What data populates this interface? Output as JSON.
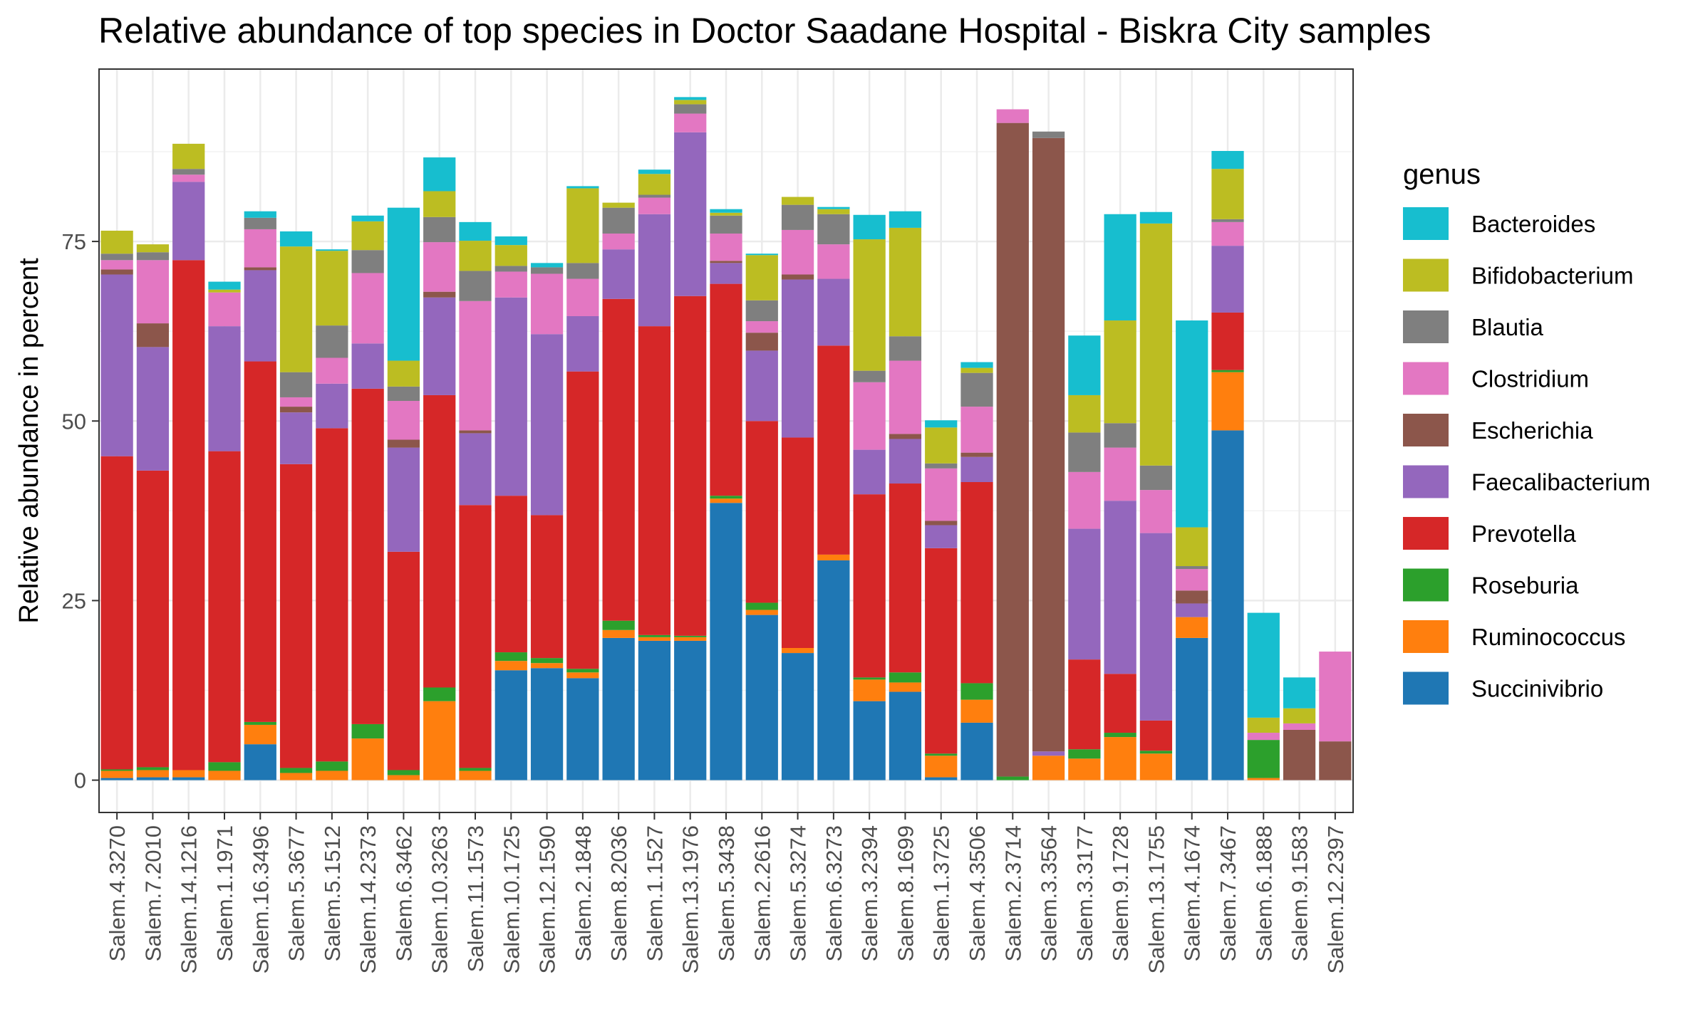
{
  "chart_data": {
    "type": "bar",
    "stacked": true,
    "title": "Relative abundance of top species in Doctor Saadane Hospital - Biskra City  samples",
    "xlabel": "",
    "ylabel": "Relative abundance in percent",
    "ylim": [
      -4.5,
      99
    ],
    "y_ticks": [
      0,
      25,
      50,
      75
    ],
    "grid": true,
    "legend": {
      "title": "genus",
      "position": "right"
    },
    "categories": [
      "Salem.4.3270",
      "Salem.7.2010",
      "Salem.14.1216",
      "Salem.1.1971",
      "Salem.16.3496",
      "Salem.5.3677",
      "Salem.5.1512",
      "Salem.14.2373",
      "Salem.6.3462",
      "Salem.10.3263",
      "Salem.11.1573",
      "Salem.10.1725",
      "Salem.12.1590",
      "Salem.2.1848",
      "Salem.8.2036",
      "Salem.1.1527",
      "Salem.13.1976",
      "Salem.5.3438",
      "Salem.2.2616",
      "Salem.5.3274",
      "Salem.6.3273",
      "Salem.3.2394",
      "Salem.8.1699",
      "Salem.1.3725",
      "Salem.4.3506",
      "Salem.2.3714",
      "Salem.3.3564",
      "Salem.3.3177",
      "Salem.9.1728",
      "Salem.13.1755",
      "Salem.4.1674",
      "Salem.7.3467",
      "Salem.6.1888",
      "Salem.9.1583",
      "Salem.12.2397"
    ],
    "series": [
      {
        "name": "Succinivibrio",
        "color": "#1f77b4",
        "values": [
          0.3,
          0.4,
          0.4,
          0,
          5,
          0,
          0,
          0,
          0,
          0,
          0,
          15.3,
          15.6,
          14.2,
          19.8,
          19.4,
          19.4,
          38.6,
          23,
          17.7,
          30.6,
          11,
          12.3,
          0.4,
          8,
          0,
          0,
          0,
          0,
          0,
          19.8,
          48.7,
          0,
          0,
          0
        ]
      },
      {
        "name": "Ruminococcus",
        "color": "#ff7f0e",
        "values": [
          1,
          1,
          1,
          1.3,
          2.7,
          1,
          1.3,
          5.8,
          0.7,
          11,
          1.3,
          1.3,
          0.7,
          0.8,
          1.1,
          0.5,
          0.5,
          0.6,
          0.7,
          0.7,
          0.8,
          3,
          1.3,
          3,
          3.2,
          0,
          3.4,
          3,
          6,
          3.7,
          2.9,
          8.1,
          0.3,
          0,
          0
        ]
      },
      {
        "name": "Roseburia",
        "color": "#2ca02c",
        "values": [
          0.2,
          0.4,
          0,
          1.2,
          0.4,
          0.7,
          1.3,
          2,
          0.7,
          1.9,
          0.4,
          1.2,
          0.7,
          0.5,
          1.3,
          0.3,
          0.2,
          0.4,
          1,
          0,
          0,
          0.3,
          1.4,
          0.3,
          2.3,
          0.5,
          0,
          1.3,
          0.6,
          0.4,
          0,
          0.3,
          5.3,
          0,
          0
        ]
      },
      {
        "name": "Prevotella",
        "color": "#d62728",
        "values": [
          43.6,
          41.3,
          71,
          43.3,
          50.2,
          42.3,
          46.4,
          46.7,
          30.4,
          40.7,
          36.6,
          21.8,
          19.9,
          41.4,
          44.8,
          43,
          47.3,
          29.5,
          25.3,
          29.3,
          29.1,
          25.5,
          26.3,
          28.6,
          28,
          0,
          0,
          12.5,
          8.2,
          4.2,
          0,
          8,
          0,
          0,
          0
        ]
      },
      {
        "name": "Faecalibacterium",
        "color": "#9467bd",
        "values": [
          25.3,
          17.2,
          10.9,
          17.4,
          12.7,
          7.2,
          6.2,
          6.3,
          14.5,
          13.6,
          10,
          27.6,
          25.2,
          7.7,
          6.9,
          15.6,
          22.8,
          2.9,
          9.8,
          22,
          9.3,
          6.2,
          6.2,
          3.2,
          3.5,
          0,
          0.6,
          18.2,
          24.1,
          26.1,
          1.9,
          9.3,
          0,
          0,
          0
        ]
      },
      {
        "name": "Escherichia",
        "color": "#8c564b",
        "values": [
          0.7,
          3.3,
          0,
          0,
          0.4,
          0.8,
          0,
          0,
          1.1,
          0.8,
          0.4,
          0,
          0,
          0,
          0,
          0,
          0,
          0.3,
          2.5,
          0.7,
          0,
          0,
          0.7,
          0.6,
          0.6,
          91,
          85.4,
          0,
          0,
          0,
          1.8,
          0,
          0,
          7,
          5.4
        ]
      },
      {
        "name": "Clostridium",
        "color": "#e377c2",
        "values": [
          1.3,
          8.8,
          1,
          4.7,
          5.3,
          1.3,
          3.6,
          9.8,
          5.4,
          6.9,
          18,
          3.6,
          8.4,
          5.2,
          2.2,
          2.3,
          2.6,
          3.8,
          1.6,
          6.2,
          4.8,
          9.4,
          10.2,
          7.3,
          6.4,
          1.9,
          0,
          7.9,
          7.4,
          6,
          3,
          3.3,
          1,
          0.9,
          12.5
        ]
      },
      {
        "name": "Blautia",
        "color": "#7f7f7f",
        "values": [
          0.9,
          1.1,
          0.8,
          0,
          1.6,
          3.5,
          4.5,
          3.2,
          2,
          3.5,
          4.2,
          0.8,
          0.9,
          2.2,
          3.6,
          0.4,
          1.3,
          2.5,
          2.9,
          3.5,
          4.2,
          1.6,
          3.4,
          0.7,
          4.7,
          0,
          0.9,
          5.5,
          3.4,
          3.4,
          0.4,
          0.4,
          0,
          0,
          0
        ]
      },
      {
        "name": "Bifidobacterium",
        "color": "#bcbd22",
        "values": [
          3.2,
          1.1,
          3.5,
          0.4,
          0,
          17.5,
          10.4,
          4,
          3.6,
          3.6,
          4.2,
          2.9,
          0,
          10.4,
          0.7,
          2.9,
          0.6,
          0.4,
          6.3,
          1.1,
          0.7,
          18.3,
          15.1,
          5,
          0.7,
          0,
          0,
          5.2,
          14.3,
          33.7,
          5.4,
          7,
          2.1,
          2.1,
          0
        ]
      },
      {
        "name": "Bacteroides",
        "color": "#17becf",
        "values": [
          0,
          0,
          0,
          1.1,
          0.9,
          2.1,
          0.2,
          0.8,
          21.3,
          4.7,
          2.6,
          1.2,
          0.6,
          0.3,
          0,
          0.6,
          0.4,
          0.5,
          0.2,
          0,
          0.3,
          3.4,
          2.3,
          1,
          0.8,
          0,
          0,
          8.3,
          14.8,
          1.6,
          28.8,
          2.5,
          14.6,
          4.3,
          0
        ]
      }
    ]
  }
}
